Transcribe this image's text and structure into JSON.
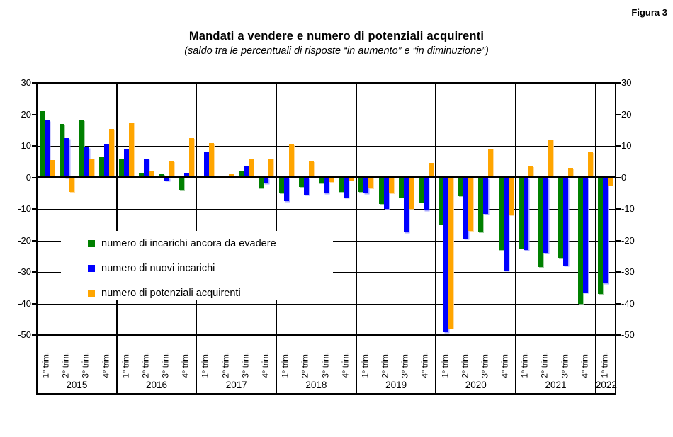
{
  "figure_label": "Figura 3",
  "title": "Mandati a vendere e numero di potenziali acquirenti",
  "subtitle": "(saldo tra le percentuali di risposte “in aumento” e “in diminuzione”)",
  "chart_data": {
    "type": "bar",
    "title": "Mandati a vendere e numero di potenziali acquirenti",
    "subtitle": "(saldo tra le percentuali di risposte “in aumento” e “in diminuzione”)",
    "ylim": [
      -50,
      30
    ],
    "yticks": [
      30,
      20,
      10,
      0,
      -10,
      -20,
      -30,
      -40,
      -50
    ],
    "grid": true,
    "legend_position": "inside-middle-left",
    "quarter_labels": [
      "1° trim.",
      "2° trim.",
      "3° trim.",
      "4° trim."
    ],
    "series_meta": [
      {
        "key": "incarichi-da-evadere",
        "name": "numero di incarichi ancora da evadere",
        "color": "#008000"
      },
      {
        "key": "nuovi-incarichi",
        "name": "numero di nuovi incarichi",
        "color": "#0000ff"
      },
      {
        "key": "potenziali-acquirenti",
        "name": "numero di potenziali acquirenti",
        "color": "#ffa500"
      }
    ],
    "years": [
      {
        "label": "2015",
        "quarters": [
          [
            21,
            18,
            5.5
          ],
          [
            17,
            12.5,
            -4.5
          ],
          [
            18,
            9.5,
            6
          ],
          [
            6.5,
            10.5,
            15.5
          ]
        ]
      },
      {
        "label": "2016",
        "quarters": [
          [
            6,
            9,
            17.5
          ],
          [
            1.5,
            6,
            2
          ],
          [
            1,
            -1,
            5
          ],
          [
            -4,
            1.5,
            12.5
          ]
        ]
      },
      {
        "label": "2017",
        "quarters": [
          [
            0,
            8,
            11
          ],
          [
            0.3,
            0.3,
            1
          ],
          [
            2,
            3.5,
            6
          ],
          [
            -3.5,
            -2,
            6
          ]
        ]
      },
      {
        "label": "2018",
        "quarters": [
          [
            -5,
            -7.5,
            10.5
          ],
          [
            -3,
            -5.5,
            5
          ],
          [
            -2,
            -5,
            -1.5
          ],
          [
            -4.5,
            -6.5,
            -1
          ]
        ]
      },
      {
        "label": "2019",
        "quarters": [
          [
            -4.5,
            -5,
            -3.5
          ],
          [
            -8.5,
            -10,
            -5
          ],
          [
            -6.5,
            -17.5,
            -10
          ],
          [
            -8,
            -10.5,
            4.5
          ]
        ]
      },
      {
        "label": "2020",
        "quarters": [
          [
            -15,
            -49,
            -48
          ],
          [
            -6,
            -19.5,
            -17
          ],
          [
            -17.5,
            -11.5,
            9
          ],
          [
            -23,
            -29.5,
            -12
          ]
        ]
      },
      {
        "label": "2021",
        "quarters": [
          [
            -22.5,
            -23,
            3.5
          ],
          [
            -28.5,
            -24,
            12
          ],
          [
            -25.5,
            -28,
            3
          ],
          [
            -40,
            -36.5,
            8
          ]
        ]
      },
      {
        "label": "2022",
        "quarters": [
          [
            -37,
            -33.5,
            -2.5
          ]
        ]
      }
    ]
  }
}
